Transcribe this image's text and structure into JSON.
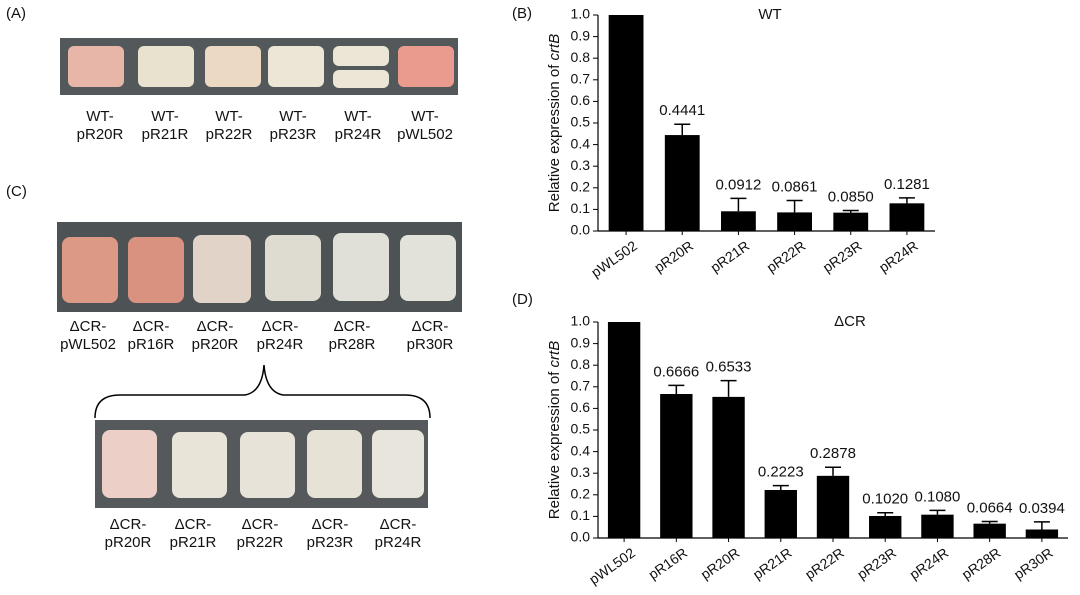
{
  "panels": [
    "(A)",
    "(B)",
    "(C)",
    "(D)"
  ],
  "photos": {
    "a": [
      [
        "WT-",
        "pR20R"
      ],
      [
        "WT-",
        "pR21R"
      ],
      [
        "WT-",
        "pR22R"
      ],
      [
        "WT-",
        "pR23R"
      ],
      [
        "WT-",
        "pR24R"
      ],
      [
        "WT-",
        "pWL502"
      ]
    ],
    "c_top": [
      [
        "ΔCR-",
        "pWL502"
      ],
      [
        "ΔCR-",
        "pR16R"
      ],
      [
        "ΔCR-",
        "pR20R"
      ],
      [
        "ΔCR-",
        "pR24R"
      ],
      [
        "ΔCR-",
        "pR28R"
      ],
      [
        "ΔCR-",
        "pR30R"
      ]
    ],
    "c_bottom": [
      [
        "ΔCR-",
        "pR20R"
      ],
      [
        "ΔCR-",
        "pR21R"
      ],
      [
        "ΔCR-",
        "pR22R"
      ],
      [
        "ΔCR-",
        "pR23R"
      ],
      [
        "ΔCR-",
        "pR24R"
      ]
    ]
  },
  "chart_data": [
    {
      "type": "bar",
      "title": "WT",
      "y_label": [
        "Relative expression of ",
        "crtB"
      ],
      "categories": [
        "pWL502",
        "pR20R",
        "pR21R",
        "pR22R",
        "pR23R",
        "pR24R"
      ],
      "values": [
        1.0,
        0.4441,
        0.0912,
        0.0861,
        0.085,
        0.1281
      ],
      "value_labels": [
        null,
        "0.4441",
        "0.0912",
        "0.0861",
        "0.0850",
        "0.1281"
      ],
      "errors": [
        0,
        0.05,
        0.06,
        0.055,
        0.01,
        0.025
      ],
      "color": "#000000",
      "ylim": [
        0,
        1
      ],
      "yticks": [
        {
          "value": 0,
          "label": "0.0"
        },
        0.1,
        0.2,
        0.3,
        0.4,
        0.5,
        0.6,
        0.7,
        0.8,
        0.9,
        {
          "value": 1,
          "label": "1.0"
        }
      ]
    },
    {
      "type": "bar",
      "title": "ΔCR",
      "y_label": [
        "Relative expression of ",
        "crtB"
      ],
      "categories": [
        "pWL502",
        "pR16R",
        "pR20R",
        "pR21R",
        "pR22R",
        "pR23R",
        "pR24R",
        "pR28R",
        "pR30R"
      ],
      "values": [
        1.0,
        0.6666,
        0.6533,
        0.2223,
        0.2878,
        0.102,
        0.108,
        0.0664,
        0.0394
      ],
      "value_labels": [
        null,
        "0.6666",
        "0.6533",
        "0.2223",
        "0.2878",
        "0.1020",
        "0.1080",
        "0.0664",
        "0.0394"
      ],
      "errors": [
        0,
        0.04,
        0.075,
        0.02,
        0.04,
        0.015,
        0.02,
        0.01,
        0.035
      ],
      "color": "#000000",
      "ylim": [
        0,
        1
      ],
      "yticks": [
        {
          "value": 0,
          "label": "0.0"
        },
        0.1,
        0.2,
        0.3,
        0.4,
        0.5,
        0.6,
        0.7,
        0.8,
        0.9,
        {
          "value": 1,
          "label": "1.0"
        }
      ]
    }
  ]
}
